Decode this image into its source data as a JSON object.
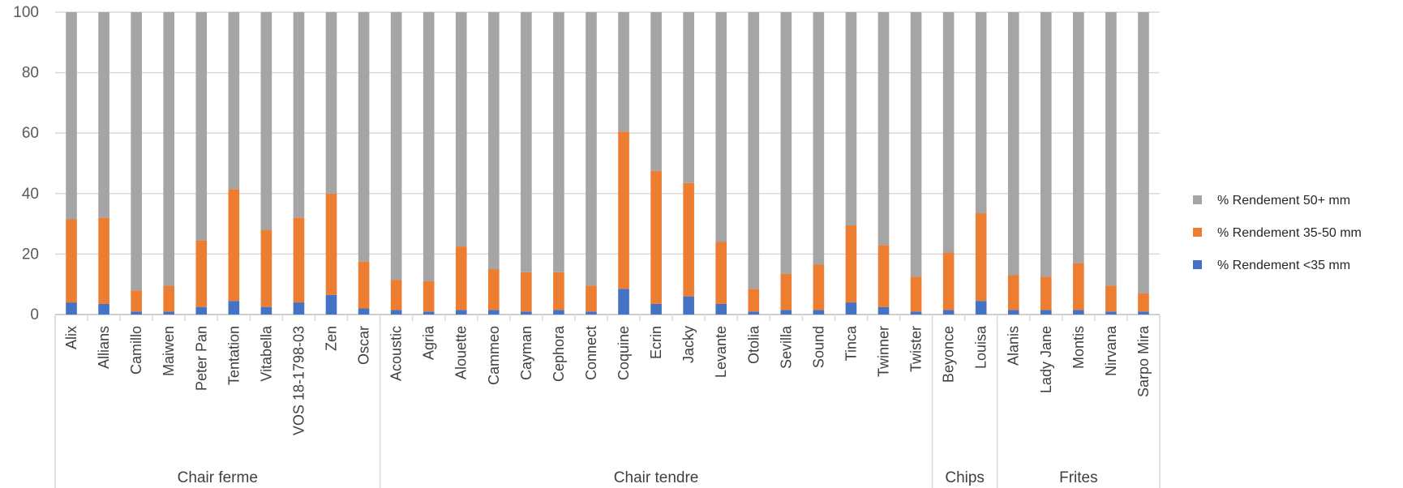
{
  "chart_data": {
    "type": "bar",
    "stacked": true,
    "ylim": [
      0,
      100
    ],
    "yticks": [
      0,
      20,
      40,
      60,
      80,
      100
    ],
    "grid": true,
    "legend_position": "right",
    "categories": [
      "Alix",
      "Allians",
      "Camillo",
      "Maiwen",
      "Peter Pan",
      "Tentation",
      "Vitabella",
      "VOS 18-1798-03",
      "Zen",
      "Oscar",
      "Acoustic",
      "Agria",
      "Alouette",
      "Cammeo",
      "Cayman",
      "Cephora",
      "Connect",
      "Coquine",
      "Ecrin",
      "Jacky",
      "Levante",
      "Otolia",
      "Sevilla",
      "Sound",
      "Tinca",
      "Twinner",
      "Twister",
      "Beyonce",
      "Louisa",
      "Alanis",
      "Lady Jane",
      "Montis",
      "Nirvana",
      "Sarpo Mira"
    ],
    "groups": [
      {
        "name": "Chair ferme",
        "count": 10
      },
      {
        "name": "Chair tendre",
        "count": 17
      },
      {
        "name": "Chips",
        "count": 2
      },
      {
        "name": "Frites",
        "count": 5
      }
    ],
    "series": [
      {
        "name": "% Rendement <35 mm",
        "color": "#4472C4",
        "values": [
          4,
          3.5,
          1,
          1,
          2.5,
          4.5,
          2.5,
          4,
          6.5,
          2,
          1.5,
          1,
          1.5,
          1.5,
          1,
          1.5,
          1,
          8.5,
          3.5,
          6,
          3.5,
          1,
          1.5,
          1.5,
          4,
          2.5,
          1,
          1.5,
          4.5,
          1.5,
          1.5,
          1.5,
          1,
          1
        ]
      },
      {
        "name": "% Rendement 35-50 mm",
        "color": "#ED7D31",
        "values": [
          27.5,
          28.5,
          7,
          8.5,
          22,
          37,
          25.5,
          28,
          33.5,
          15.5,
          10,
          10,
          21,
          13.5,
          13,
          12.5,
          8.5,
          52,
          44,
          37.5,
          20.5,
          7.5,
          12,
          15,
          25.5,
          20.5,
          11.5,
          19,
          29,
          11.5,
          11,
          15.5,
          8.5,
          6
        ]
      },
      {
        "name": "% Rendement 50+ mm",
        "color": "#A5A5A5",
        "values": [
          68.5,
          68,
          92,
          90.5,
          75.5,
          58.5,
          72,
          68,
          60,
          82.5,
          88.5,
          89,
          77.5,
          85,
          86,
          86,
          90.5,
          39.5,
          52.5,
          56.5,
          76,
          91.5,
          86.5,
          83.5,
          70.5,
          77,
          87.5,
          79.5,
          66.5,
          87,
          87.5,
          83,
          90.5,
          93
        ]
      }
    ]
  }
}
